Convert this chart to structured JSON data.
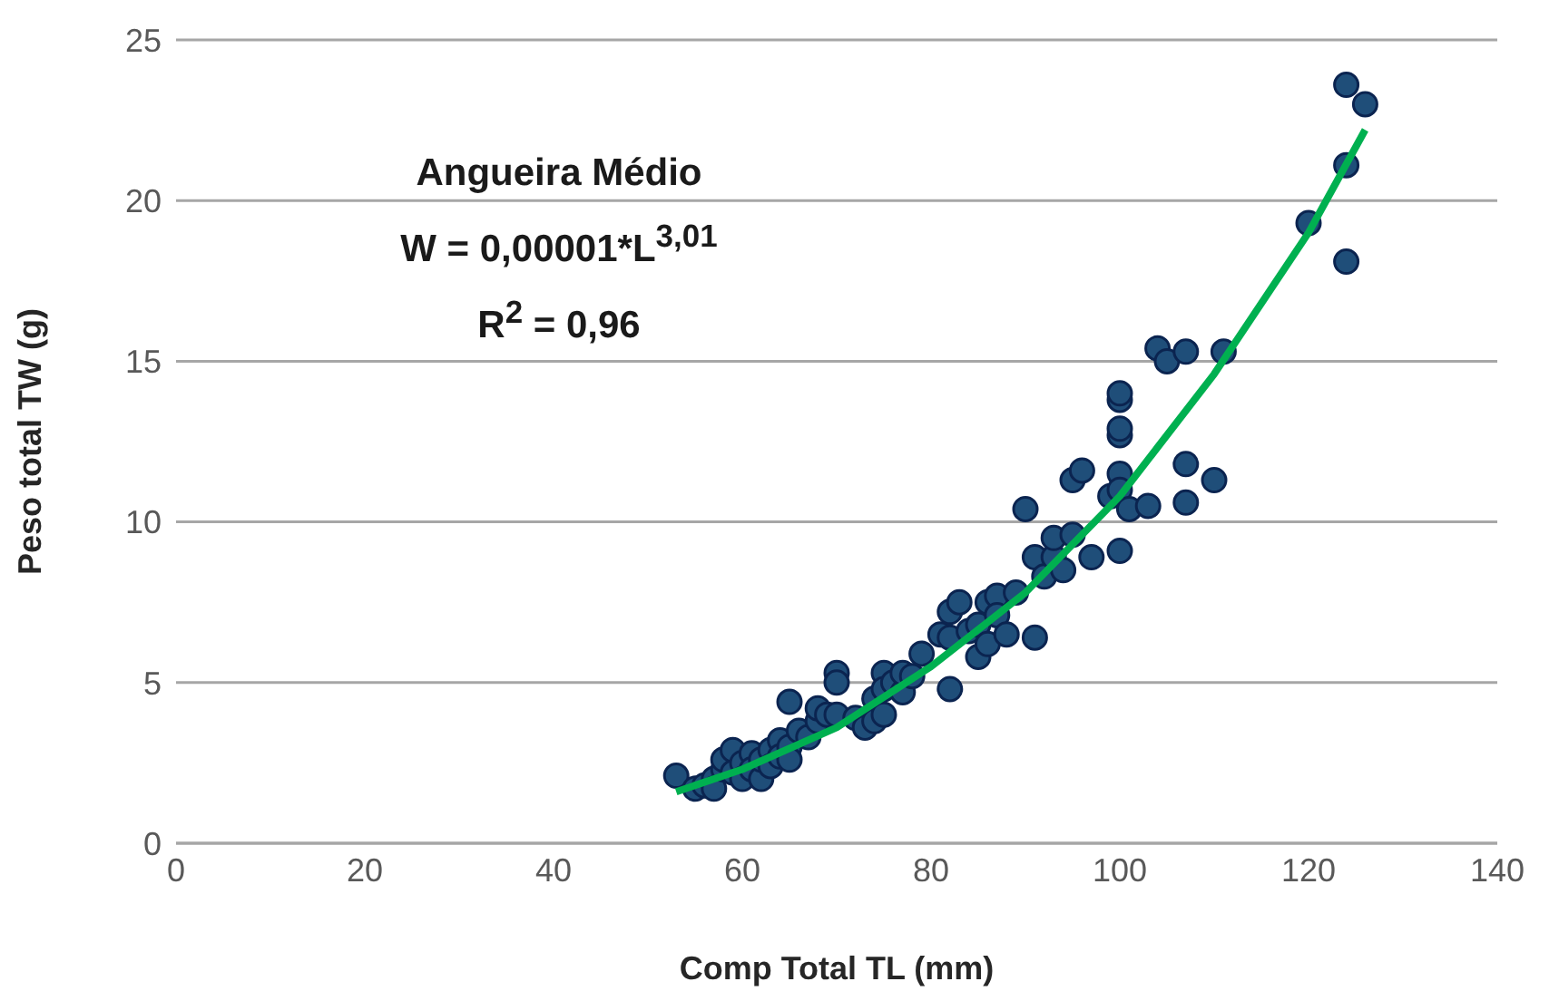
{
  "chart_data": {
    "type": "scatter",
    "xlabel": "Comp Total TL (mm)",
    "ylabel": "Peso total TW (g)",
    "annotations": [
      "Angueira Médio",
      "W = 0,00001*L$^{3,01}$",
      "R$^{2}$ = 0,96"
    ],
    "xlim": [
      0,
      140
    ],
    "xticks": [
      0,
      20,
      40,
      60,
      80,
      100,
      120,
      140
    ],
    "ylim": [
      0,
      25
    ],
    "yticks": [
      0,
      5,
      10,
      15,
      20,
      25
    ],
    "grid": "y",
    "legend": false,
    "marker": "circle",
    "series": [
      {
        "color": "#1f4e79",
        "x": [
          53,
          55,
          56,
          57,
          57,
          58,
          58,
          59,
          59,
          60,
          60,
          61,
          61,
          62,
          62,
          63,
          63,
          64,
          64,
          65,
          65,
          65,
          66,
          67,
          68,
          68,
          69,
          70,
          70,
          70,
          72,
          73,
          74,
          74,
          75,
          75,
          75,
          76,
          77,
          77,
          78,
          79,
          81,
          82,
          82,
          82,
          83,
          84,
          85,
          85,
          86,
          86,
          87,
          87,
          88,
          89,
          90,
          91,
          91,
          92,
          93,
          93,
          94,
          95,
          95,
          96,
          97,
          99,
          100,
          100,
          100,
          100,
          100,
          100,
          100,
          101,
          103,
          104,
          105,
          107,
          107,
          107,
          110,
          111,
          120,
          124,
          124,
          124,
          126
        ],
        "values": [
          2.1,
          1.7,
          1.8,
          2.0,
          1.7,
          2.3,
          2.6,
          2.9,
          2.2,
          2.5,
          2.0,
          2.8,
          2.3,
          2.0,
          2.6,
          2.9,
          2.4,
          3.2,
          2.7,
          4.4,
          3.0,
          2.6,
          3.5,
          3.3,
          3.8,
          4.2,
          4.0,
          5.3,
          5.0,
          4.0,
          3.9,
          3.6,
          4.5,
          3.8,
          5.3,
          4.8,
          4.0,
          5.0,
          4.7,
          5.3,
          5.2,
          5.9,
          6.5,
          6.4,
          7.2,
          4.8,
          7.5,
          6.6,
          5.8,
          6.8,
          7.5,
          6.2,
          7.7,
          7.1,
          6.5,
          7.8,
          10.4,
          8.9,
          6.4,
          8.3,
          8.9,
          9.5,
          8.5,
          9.6,
          11.3,
          11.6,
          8.9,
          10.8,
          11.5,
          11.0,
          12.7,
          12.9,
          13.8,
          14.0,
          9.1,
          10.4,
          10.5,
          15.4,
          15.0,
          15.3,
          11.8,
          10.6,
          11.3,
          15.3,
          19.3,
          23.6,
          21.1,
          18.1,
          23.0
        ]
      },
      {
        "type": "line",
        "color": "#00b050",
        "marker": "none",
        "x": [
          53,
          60,
          70,
          80,
          90,
          100,
          110,
          120,
          126
        ],
        "values": [
          1.6,
          2.3,
          3.6,
          5.5,
          7.8,
          10.8,
          14.6,
          19.0,
          22.2
        ]
      }
    ]
  }
}
